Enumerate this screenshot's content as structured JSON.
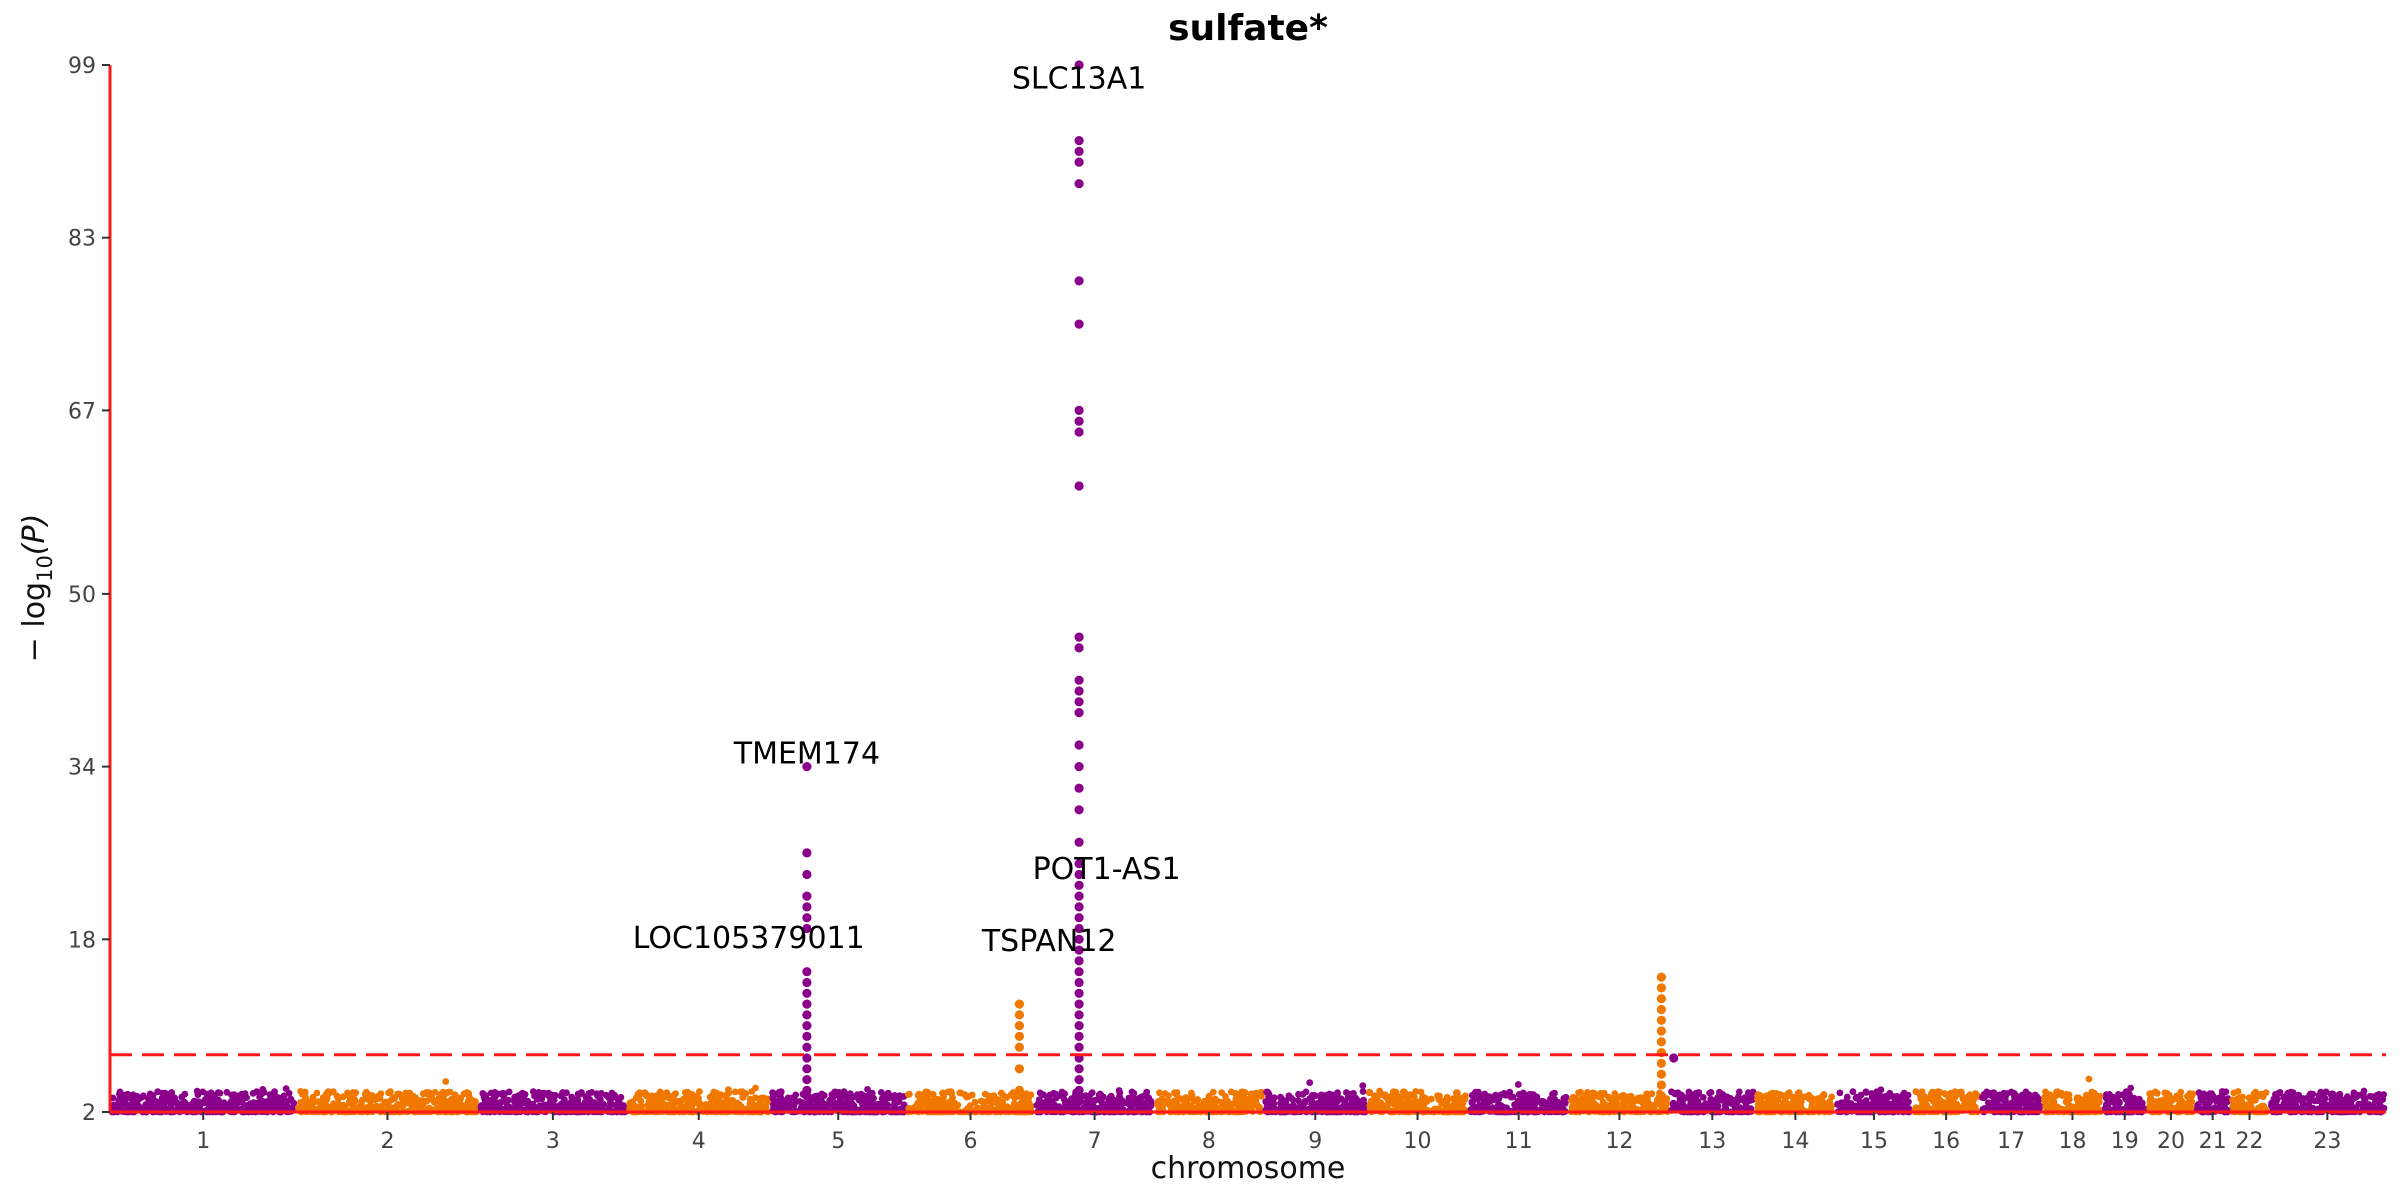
{
  "chart_data": {
    "type": "scatter",
    "subtype": "manhattan",
    "title": "sulfate*",
    "xlabel": "chromosome",
    "ylabel_prefix": "− log",
    "ylabel_sub": "10",
    "ylabel_suffix": "(P)",
    "ylim": [
      2,
      99
    ],
    "yticks": [
      2,
      18,
      34,
      50,
      67,
      83,
      99
    ],
    "significance_threshold": 7.3,
    "threshold_color": "#ff1a1a",
    "axis_color": "#ff1a1a",
    "grid": false,
    "legend": "none",
    "series_colors": [
      "#8b008b",
      "#f07800"
    ],
    "chromosomes": [
      {
        "label": "1",
        "length": 248,
        "color": "#8b008b"
      },
      {
        "label": "2",
        "length": 242,
        "color": "#f07800"
      },
      {
        "label": "3",
        "length": 198,
        "color": "#8b008b"
      },
      {
        "label": "4",
        "length": 190,
        "color": "#f07800"
      },
      {
        "label": "5",
        "length": 181,
        "color": "#8b008b"
      },
      {
        "label": "6",
        "length": 171,
        "color": "#f07800"
      },
      {
        "label": "7",
        "length": 159,
        "color": "#8b008b"
      },
      {
        "label": "8",
        "length": 145,
        "color": "#f07800"
      },
      {
        "label": "9",
        "length": 138,
        "color": "#8b008b"
      },
      {
        "label": "10",
        "length": 134,
        "color": "#f07800"
      },
      {
        "label": "11",
        "length": 135,
        "color": "#8b008b"
      },
      {
        "label": "12",
        "length": 133,
        "color": "#f07800"
      },
      {
        "label": "13",
        "length": 114,
        "color": "#8b008b"
      },
      {
        "label": "14",
        "length": 107,
        "color": "#f07800"
      },
      {
        "label": "15",
        "length": 102,
        "color": "#8b008b"
      },
      {
        "label": "16",
        "length": 90,
        "color": "#f07800"
      },
      {
        "label": "17",
        "length": 83,
        "color": "#8b008b"
      },
      {
        "label": "18",
        "length": 80,
        "color": "#f07800"
      },
      {
        "label": "19",
        "length": 59,
        "color": "#8b008b"
      },
      {
        "label": "20",
        "length": 64,
        "color": "#f07800"
      },
      {
        "label": "21",
        "length": 47,
        "color": "#8b008b"
      },
      {
        "label": "22",
        "length": 51,
        "color": "#f07800"
      },
      {
        "label": "23",
        "length": 156,
        "color": "#8b008b"
      }
    ],
    "peaks": [
      {
        "chr": "5",
        "pos": 0.27,
        "values": [
          3.5,
          4,
          5,
          6,
          7,
          8,
          9,
          10,
          11,
          12,
          13,
          14,
          15,
          19,
          20,
          21,
          22,
          24,
          26,
          34
        ]
      },
      {
        "chr": "6",
        "pos": 0.88,
        "values": [
          4,
          6,
          8,
          9,
          10,
          11,
          12
        ]
      },
      {
        "chr": "7",
        "pos": 0.37,
        "values": [
          3,
          4,
          5,
          6,
          7,
          8,
          9,
          10,
          11,
          12,
          13,
          14,
          15,
          16,
          17,
          18,
          19,
          20,
          21,
          22,
          23,
          24,
          25,
          27,
          30,
          32,
          34,
          36,
          39,
          40,
          41,
          42,
          45,
          46,
          60,
          65,
          66,
          67,
          75,
          79,
          88,
          90,
          91,
          92,
          99
        ]
      },
      {
        "chr": "12",
        "pos": 0.92,
        "values": [
          3.5,
          4.5,
          5.5,
          6.5,
          7.5,
          8.5,
          9.5,
          10.5,
          11.5,
          12.5,
          13.5,
          14.5
        ]
      },
      {
        "chr": "13",
        "pos": 0.05,
        "values": [
          7
        ]
      }
    ],
    "annotations": [
      {
        "label": "SLC13A1",
        "chr": "7",
        "pos": 0.37,
        "y": 96.8
      },
      {
        "label": "TMEM174",
        "chr": "5",
        "pos": 0.27,
        "y": 34.3
      },
      {
        "label": "POT1-AS1",
        "chr": "7",
        "pos": 0.6,
        "y": 23.6
      },
      {
        "label": "LOC105379011",
        "chr": "4",
        "pos": 0.85,
        "y": 17.2
      },
      {
        "label": "TSPAN12",
        "chr": "7",
        "pos": 0.12,
        "y": 16.9
      }
    ]
  }
}
